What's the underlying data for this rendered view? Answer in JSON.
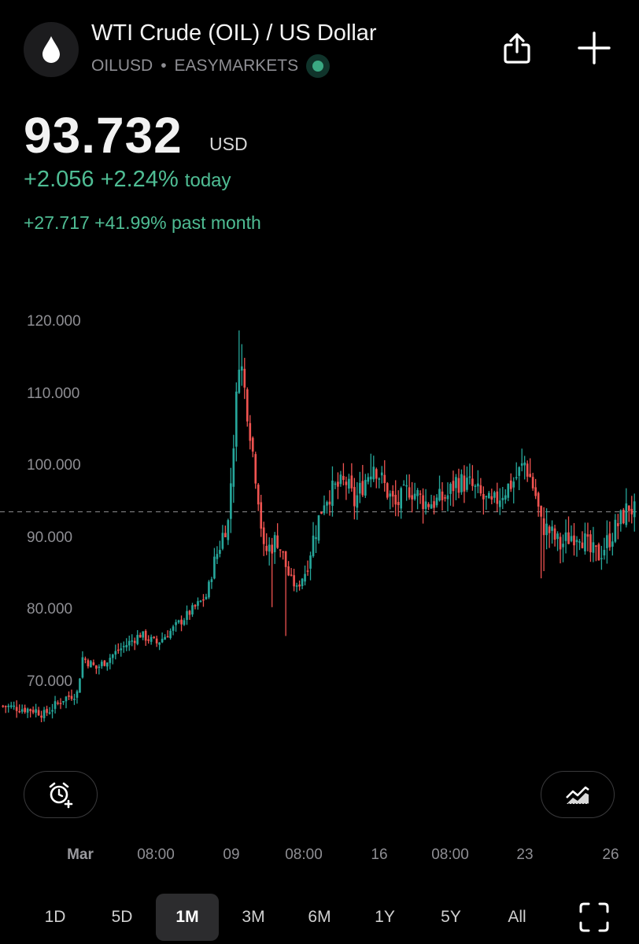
{
  "header": {
    "title": "WTI Crude (OIL) / US Dollar",
    "symbol": "OILUSD",
    "separator": "•",
    "exchange": "EASYMARKETS",
    "logo_icon": "droplet-icon",
    "share_icon": "share-icon",
    "add_icon": "plus-icon",
    "live_status_color": "#3aa882"
  },
  "quote": {
    "price": "93.732",
    "currency": "USD",
    "change_today": "+2.056 +2.24%",
    "today_label": "today",
    "change_month": "+27.717 +41.99% past month",
    "up_color": "#4fbd94"
  },
  "chart_data": {
    "type": "candlestick",
    "y_ticks": [
      "120.000",
      "110.000",
      "100.000",
      "90.000",
      "80.000",
      "70.000"
    ],
    "ylim": [
      63,
      122
    ],
    "x_ticks": [
      {
        "label": "Mar",
        "bold": true
      },
      {
        "label": "08:00",
        "bold": false
      },
      {
        "label": "09",
        "bold": false
      },
      {
        "label": "08:00",
        "bold": false
      },
      {
        "label": "16",
        "bold": false
      },
      {
        "label": "08:00",
        "bold": false
      },
      {
        "label": "23",
        "bold": false
      },
      {
        "label": "26",
        "bold": false
      }
    ],
    "current_price_line": 93.732,
    "up_color": "#26a69a",
    "down_color": "#ef5350",
    "keypoints": [
      [
        0,
        66.8
      ],
      [
        12,
        66.2
      ],
      [
        15,
        65.6
      ],
      [
        22,
        67.8
      ],
      [
        27,
        68.6
      ],
      [
        29,
        73.5
      ],
      [
        34,
        72.0
      ],
      [
        42,
        74.5
      ],
      [
        50,
        76.7
      ],
      [
        56,
        75.5
      ],
      [
        62,
        77.5
      ],
      [
        70,
        80.5
      ],
      [
        74,
        82.0
      ],
      [
        78,
        88.0
      ],
      [
        81,
        91.8
      ],
      [
        82,
        92.2
      ],
      [
        86,
        115.0
      ],
      [
        87,
        113.5
      ],
      [
        90,
        105.0
      ],
      [
        93,
        96.0
      ],
      [
        95,
        88.0
      ],
      [
        100,
        90.0
      ],
      [
        104,
        85.0
      ],
      [
        107,
        83.0
      ],
      [
        110,
        85.5
      ],
      [
        113,
        90.0
      ],
      [
        117,
        95.5
      ],
      [
        121,
        97.0
      ],
      [
        125,
        97.8
      ],
      [
        128,
        95.0
      ],
      [
        131,
        97.5
      ],
      [
        135,
        100.5
      ],
      [
        140,
        96.5
      ],
      [
        143,
        94.5
      ],
      [
        148,
        97.0
      ],
      [
        154,
        95.0
      ],
      [
        158,
        95.2
      ],
      [
        162,
        96.0
      ],
      [
        165,
        98.0
      ],
      [
        170,
        97.5
      ],
      [
        175,
        95.5
      ],
      [
        178,
        94.5
      ],
      [
        182,
        96.5
      ],
      [
        186,
        98.0
      ],
      [
        190,
        100.5
      ],
      [
        192,
        98.5
      ],
      [
        194,
        96.0
      ],
      [
        196,
        92.0
      ],
      [
        199,
        91.0
      ],
      [
        203,
        89.0
      ],
      [
        207,
        90.5
      ],
      [
        210,
        91.0
      ],
      [
        214,
        88.0
      ],
      [
        217,
        87.8
      ],
      [
        220,
        89.5
      ],
      [
        224,
        92.0
      ],
      [
        228,
        94.5
      ],
      [
        230,
        93.7
      ]
    ],
    "candle_count": 231
  },
  "controls": {
    "alert_icon": "add-alarm-icon",
    "indicator_icon": "indicator-chart-icon",
    "expand_icon": "fullscreen-icon",
    "ranges": [
      {
        "label": "1D",
        "active": false
      },
      {
        "label": "5D",
        "active": false
      },
      {
        "label": "1M",
        "active": true
      },
      {
        "label": "3M",
        "active": false
      },
      {
        "label": "6M",
        "active": false
      },
      {
        "label": "1Y",
        "active": false
      },
      {
        "label": "5Y",
        "active": false
      },
      {
        "label": "All",
        "active": false
      }
    ]
  }
}
